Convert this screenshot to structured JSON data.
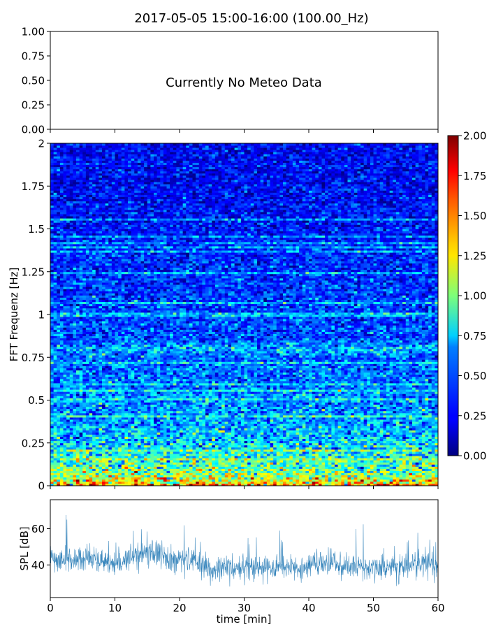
{
  "title": "2017-05-05 15:00-16:00 (100.00_Hz)",
  "chart_data": [
    {
      "panel": "meteo",
      "type": "line",
      "ylim": [
        0,
        1
      ],
      "yticks": [
        "0.00",
        "0.25",
        "0.50",
        "0.75",
        "1.00"
      ],
      "annotation": "Currently No Meteo Data",
      "series": []
    },
    {
      "panel": "spectrogram",
      "type": "heatmap",
      "ylabel": "FFT Frequenz [Hz]",
      "ylim": [
        0,
        2
      ],
      "yticks": [
        "0",
        "0.25",
        "0.5",
        "0.75",
        "1",
        "1.25",
        "1.5",
        "1.75",
        "2"
      ],
      "xlim": [
        0,
        60
      ],
      "colormap": "jet",
      "clim": [
        0,
        2
      ],
      "colorbar_ticks": [
        "0.00",
        "0.25",
        "0.50",
        "0.75",
        "1.00",
        "1.25",
        "1.50",
        "1.75",
        "2.00"
      ],
      "time_bins": 120,
      "freq_bins": 160,
      "amplitude_profile": {
        "freq": [
          0.0,
          0.05,
          0.1,
          0.15,
          0.2,
          0.25,
          0.3,
          0.4,
          0.5,
          0.6,
          0.75,
          0.8,
          0.85,
          1.0,
          1.25,
          1.5,
          1.75,
          2.0
        ],
        "mean": [
          1.5,
          1.1,
          0.95,
          0.85,
          0.75,
          0.7,
          0.62,
          0.56,
          0.52,
          0.48,
          0.44,
          0.6,
          0.4,
          0.38,
          0.34,
          0.28,
          0.25,
          0.24
        ]
      }
    },
    {
      "panel": "spl",
      "type": "line",
      "xlabel": "time [min]",
      "ylabel": "SPL [dB]",
      "xlim": [
        0,
        60
      ],
      "ylim": [
        22,
        76
      ],
      "xticks": [
        "0",
        "10",
        "20",
        "30",
        "40",
        "50",
        "60"
      ],
      "yticks": [
        "40",
        "60"
      ],
      "series": [
        {
          "color": "#1f77b4",
          "x": [
            0,
            2,
            4,
            6,
            8,
            10,
            12,
            14,
            15,
            16,
            18,
            20,
            22,
            24,
            25,
            26,
            27,
            28,
            30,
            32,
            34,
            36,
            38,
            40,
            42,
            44,
            46,
            48,
            50,
            52,
            54,
            56,
            58,
            60
          ],
          "y": [
            44,
            43,
            43,
            43,
            42,
            41,
            44,
            47,
            48,
            47,
            44,
            43,
            42,
            39,
            37,
            38,
            40,
            38,
            39,
            38,
            38,
            39,
            39,
            39,
            40,
            41,
            38,
            39,
            39,
            38,
            39,
            40,
            40,
            40
          ],
          "spread": [
            5,
            5,
            5,
            5,
            5,
            5,
            5,
            6,
            6,
            6,
            5,
            5,
            5,
            5,
            5,
            5,
            5,
            5,
            5,
            5,
            5,
            5,
            5,
            5,
            5,
            5,
            5,
            5,
            5,
            5,
            5,
            5,
            5,
            5
          ]
        }
      ]
    }
  ]
}
